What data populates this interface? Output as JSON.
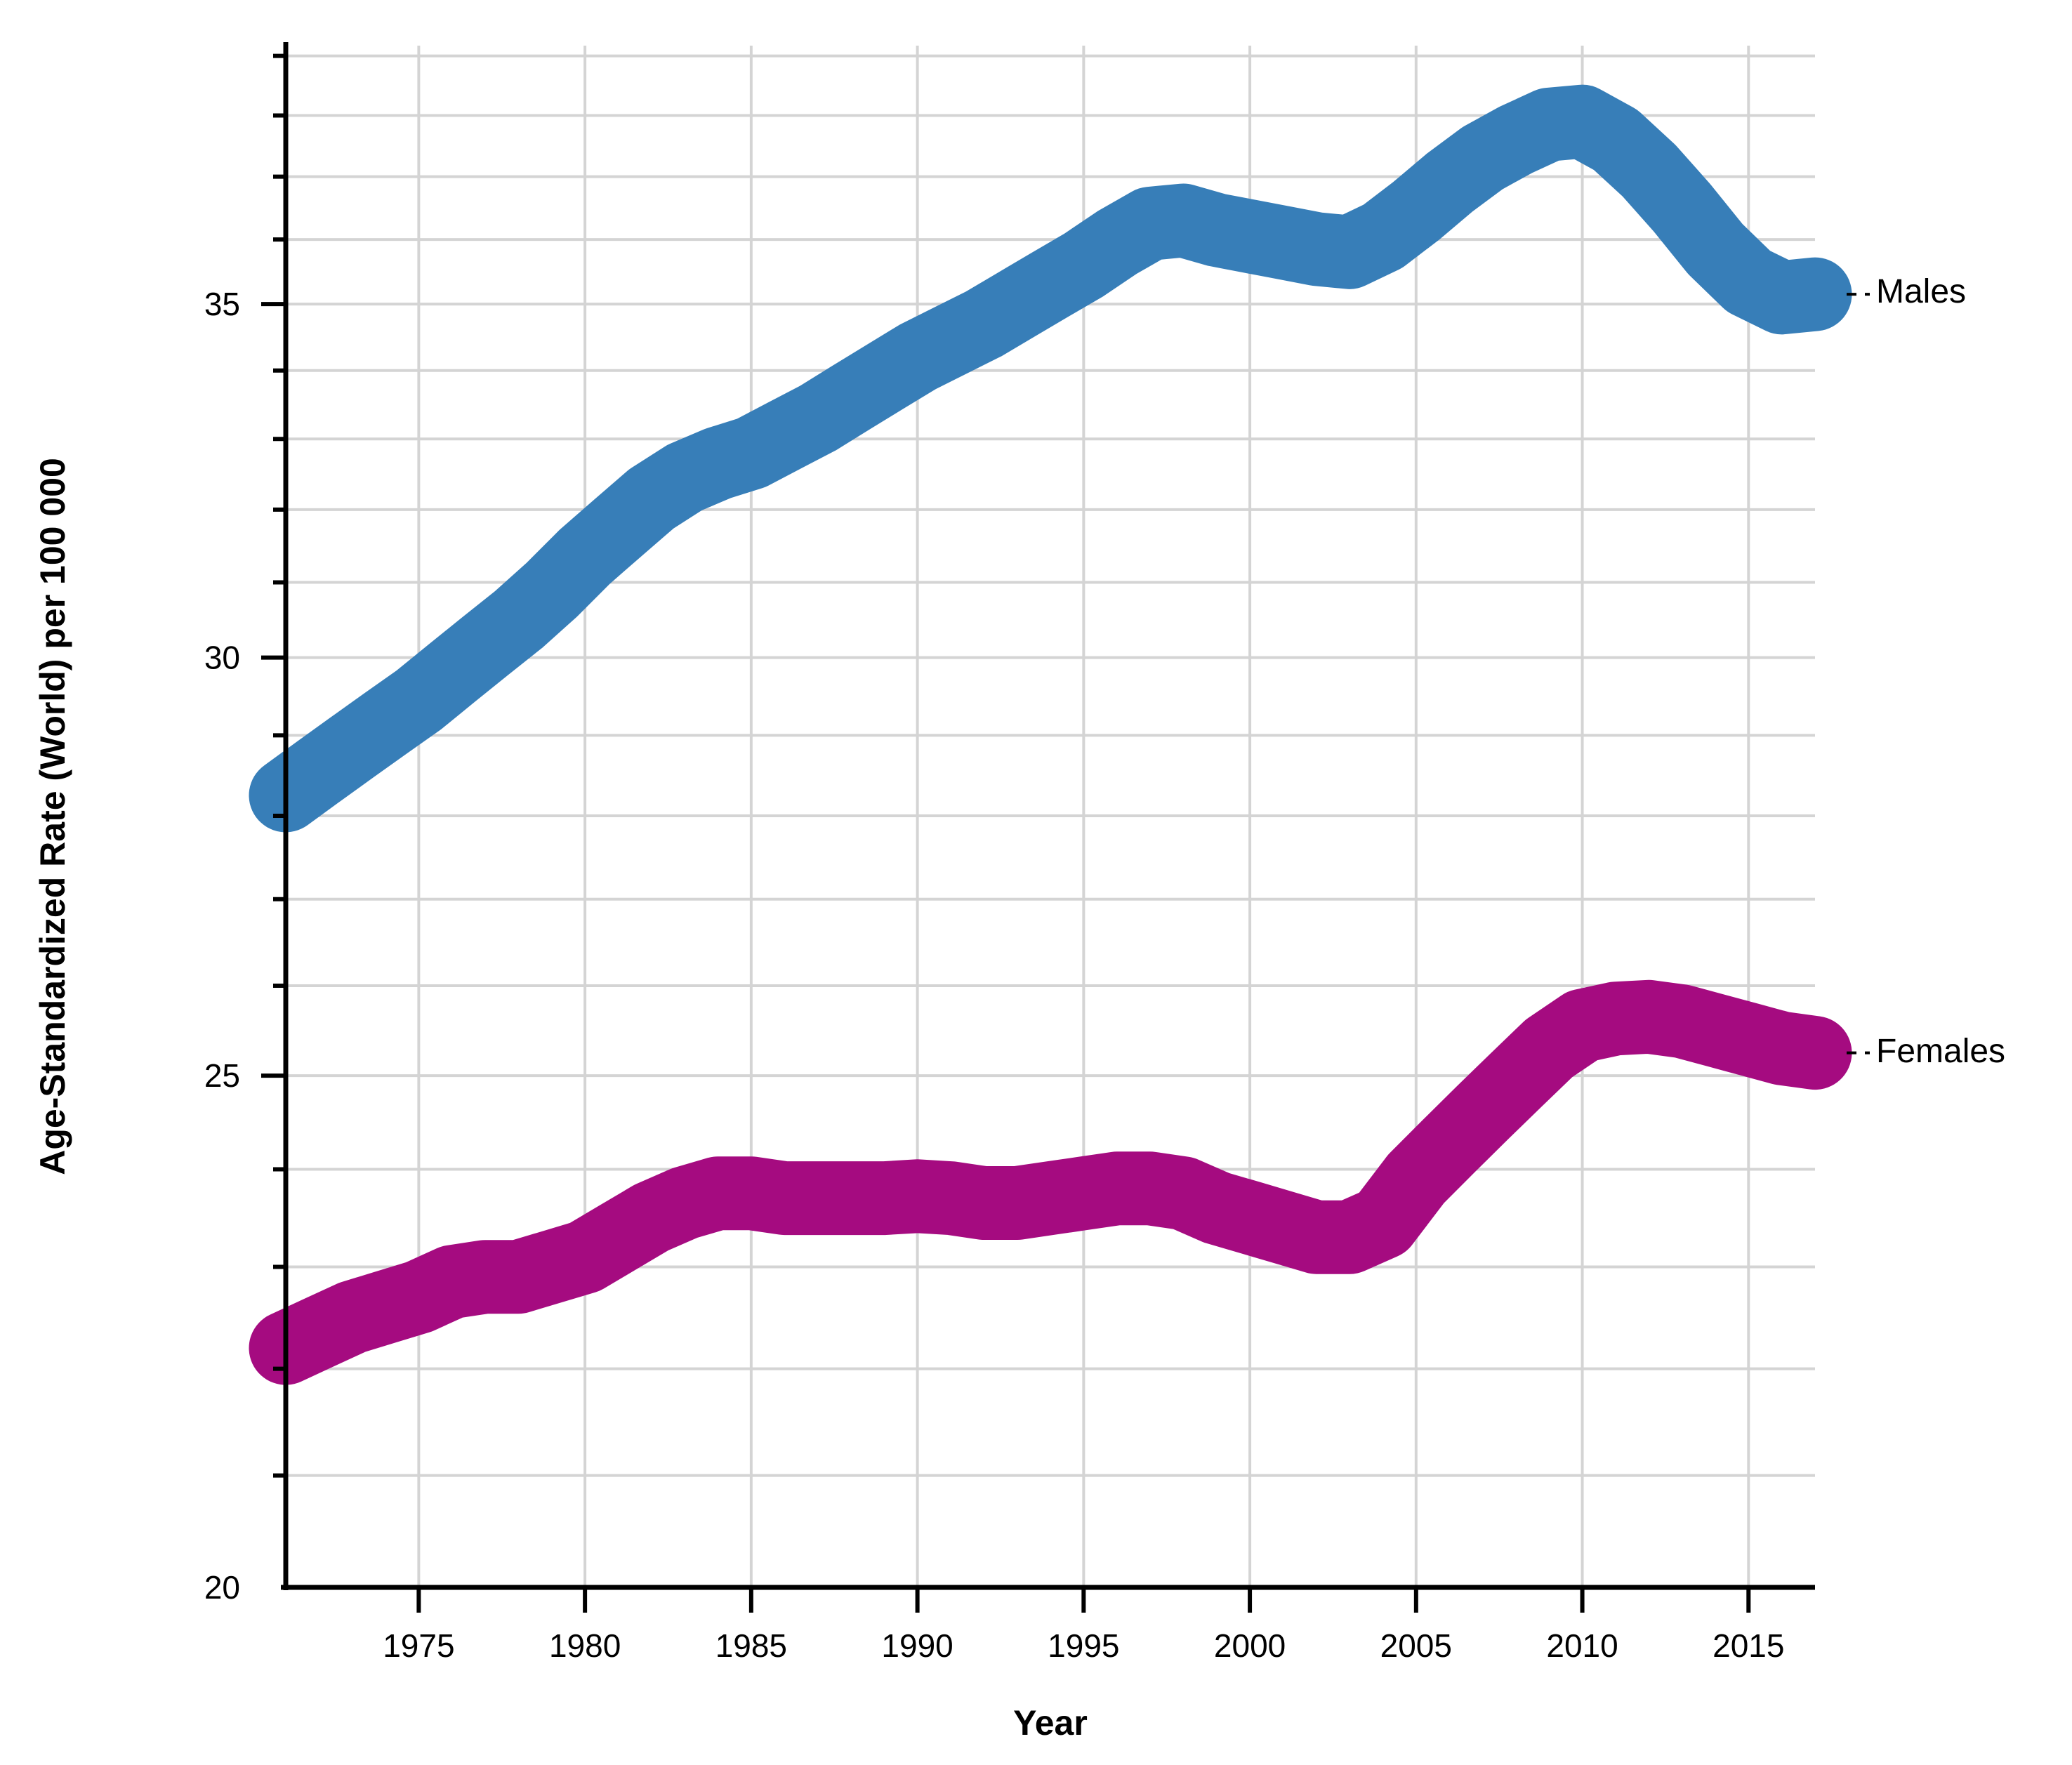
{
  "chart_data": {
    "type": "line",
    "title": "",
    "xlabel": "Year",
    "ylabel": "Age-Standardized Rate (World) per 100 000",
    "x_ticks": [
      1975,
      1980,
      1985,
      1990,
      1995,
      2000,
      2005,
      2010,
      2015
    ],
    "y_ticks": [
      35,
      30,
      25,
      20
    ],
    "y_minor_gridlines": [
      21,
      22,
      23,
      24,
      25,
      26,
      27,
      28,
      29,
      30,
      31,
      32,
      33,
      34,
      35,
      36,
      37,
      38,
      39
    ],
    "x_range": [
      1971,
      2017
    ],
    "y_range": [
      20,
      39.2
    ],
    "y_scale": "log",
    "grid": true,
    "legend_position": "end-of-line-labels",
    "years": [
      1971,
      1972,
      1973,
      1974,
      1975,
      1976,
      1977,
      1978,
      1979,
      1980,
      1981,
      1982,
      1983,
      1984,
      1985,
      1986,
      1987,
      1988,
      1989,
      1990,
      1991,
      1992,
      1993,
      1994,
      1995,
      1996,
      1997,
      1998,
      1999,
      2000,
      2001,
      2002,
      2003,
      2004,
      2005,
      2006,
      2007,
      2008,
      2009,
      2010,
      2011,
      2012,
      2013,
      2014,
      2015,
      2016,
      2017
    ],
    "series": [
      {
        "name": "Males",
        "color": "#377EB8",
        "values": [
          28.25,
          28.55,
          28.85,
          29.15,
          29.45,
          29.8,
          30.15,
          30.5,
          30.9,
          31.35,
          31.75,
          32.15,
          32.45,
          32.65,
          32.8,
          33.05,
          33.3,
          33.6,
          33.9,
          34.2,
          34.45,
          34.7,
          35.0,
          35.3,
          35.6,
          35.95,
          36.25,
          36.3,
          36.15,
          36.05,
          35.95,
          35.85,
          35.8,
          36.05,
          36.45,
          36.9,
          37.3,
          37.6,
          37.85,
          37.9,
          37.6,
          37.1,
          36.5,
          35.85,
          35.35,
          35.1,
          35.15
        ]
      },
      {
        "name": "Females",
        "color": "#A50B80",
        "values": [
          22.2,
          22.35,
          22.5,
          22.6,
          22.7,
          22.85,
          22.9,
          22.9,
          23.0,
          23.1,
          23.3,
          23.5,
          23.65,
          23.75,
          23.75,
          23.7,
          23.7,
          23.7,
          23.7,
          23.72,
          23.7,
          23.65,
          23.65,
          23.7,
          23.75,
          23.8,
          23.8,
          23.75,
          23.6,
          23.5,
          23.4,
          23.3,
          23.3,
          23.45,
          23.9,
          24.25,
          24.6,
          24.95,
          25.3,
          25.55,
          25.63,
          25.65,
          25.6,
          25.5,
          25.4,
          25.3,
          25.25
        ]
      }
    ]
  },
  "colors": {
    "background": "#ffffff",
    "axis": "#000000",
    "gridline": "#d4d4d4",
    "text": "#000000",
    "males_line": "#377EB8",
    "females_line": "#A50B80"
  }
}
